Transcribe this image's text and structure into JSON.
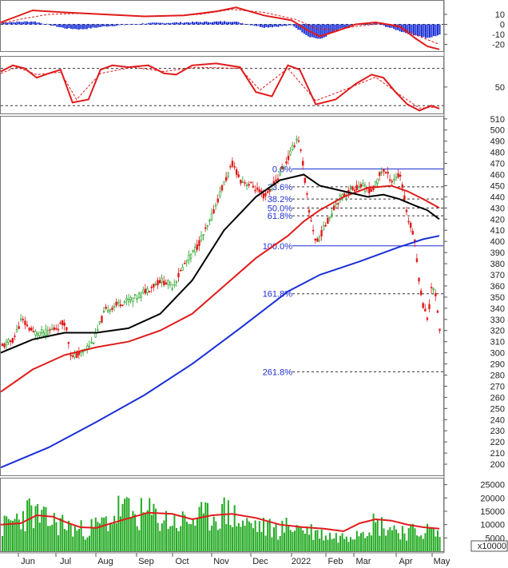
{
  "chart_data": {
    "type": "stock-technical",
    "x_axis_labels": [
      "Jun",
      "Jul",
      "Aug",
      "Sep",
      "Oct",
      "Nov",
      "Dec",
      "2022",
      "Feb",
      "Mar",
      "Apr",
      "May"
    ],
    "colors": {
      "price_up": "#1c9e1c",
      "price_down": "#e01b1b",
      "ma_short": "#000000",
      "ma_mid": "#e01b1b",
      "ma_long": "#1a2fd6",
      "fib": "#1a2fd6",
      "volume": "#22aa22"
    },
    "panels": [
      {
        "name": "macd",
        "ylim": [
          -26,
          22
        ],
        "yticks": [
          10,
          0,
          -10,
          -20
        ],
        "series": [
          {
            "points": [
              [
                0,
                2
              ],
              [
                20,
                8
              ],
              [
                40,
                14
              ],
              [
                80,
                12
              ],
              [
                130,
                10
              ],
              [
                180,
                8
              ],
              [
                230,
                9
              ],
              [
                270,
                13
              ],
              [
                295,
                17
              ],
              [
                330,
                9
              ],
              [
                365,
                4
              ],
              [
                385,
                -6
              ],
              [
                400,
                -12
              ],
              [
                420,
                -7
              ],
              [
                445,
                0
              ],
              [
                470,
                2
              ],
              [
                500,
                -2
              ],
              [
                520,
                -14
              ],
              [
                535,
                -22
              ],
              [
                550,
                -25
              ]
            ]
          },
          {
            "points": [
              [
                0,
                1
              ],
              [
                30,
                6
              ],
              [
                60,
                10
              ],
              [
                100,
                11
              ],
              [
                150,
                9
              ],
              [
                200,
                8
              ],
              [
                250,
                10
              ],
              [
                290,
                15
              ],
              [
                330,
                12
              ],
              [
                370,
                5
              ],
              [
                395,
                -4
              ],
              [
                420,
                -6
              ],
              [
                445,
                -2
              ],
              [
                480,
                1
              ],
              [
                505,
                -4
              ],
              [
                525,
                -12
              ],
              [
                550,
                -20
              ]
            ]
          }
        ],
        "histogram": [
          [
            5,
            2
          ],
          [
            40,
            3
          ],
          [
            80,
            -4
          ],
          [
            100,
            -5
          ],
          [
            130,
            -2
          ],
          [
            180,
            1
          ],
          [
            230,
            2
          ],
          [
            290,
            3
          ],
          [
            330,
            -3
          ],
          [
            365,
            -1
          ],
          [
            385,
            -12
          ],
          [
            400,
            -15
          ],
          [
            420,
            -6
          ],
          [
            440,
            -1
          ],
          [
            470,
            1
          ],
          [
            505,
            -8
          ],
          [
            520,
            -11
          ],
          [
            535,
            -14
          ],
          [
            550,
            -10
          ]
        ]
      },
      {
        "name": "stochastic",
        "ylim": [
          10,
          95
        ],
        "yticks": [
          50
        ],
        "levels": [
          80,
          20
        ],
        "series": [
          {
            "points": [
              [
                0,
                75
              ],
              [
                15,
                85
              ],
              [
                30,
                80
              ],
              [
                45,
                65
              ],
              [
                60,
                72
              ],
              [
                75,
                78
              ],
              [
                90,
                25
              ],
              [
                110,
                30
              ],
              [
                125,
                78
              ],
              [
                140,
                85
              ],
              [
                160,
                82
              ],
              [
                185,
                85
              ],
              [
                205,
                72
              ],
              [
                220,
                70
              ],
              [
                240,
                85
              ],
              [
                270,
                88
              ],
              [
                300,
                82
              ],
              [
                320,
                42
              ],
              [
                340,
                35
              ],
              [
                360,
                85
              ],
              [
                375,
                78
              ],
              [
                395,
                22
              ],
              [
                420,
                30
              ],
              [
                445,
                55
              ],
              [
                465,
                70
              ],
              [
                480,
                65
              ],
              [
                495,
                42
              ],
              [
                510,
                22
              ],
              [
                525,
                12
              ],
              [
                540,
                20
              ],
              [
                550,
                15
              ]
            ]
          },
          {
            "points": [
              [
                0,
                72
              ],
              [
                20,
                82
              ],
              [
                45,
                70
              ],
              [
                75,
                74
              ],
              [
                95,
                30
              ],
              [
                125,
                72
              ],
              [
                165,
                82
              ],
              [
                205,
                75
              ],
              [
                245,
                82
              ],
              [
                300,
                80
              ],
              [
                325,
                45
              ],
              [
                360,
                80
              ],
              [
                395,
                28
              ],
              [
                440,
                50
              ],
              [
                470,
                66
              ],
              [
                500,
                38
              ],
              [
                525,
                16
              ],
              [
                550,
                18
              ]
            ]
          }
        ]
      },
      {
        "name": "price",
        "ylim": [
          190,
          512
        ],
        "yticks": [
          510,
          500,
          490,
          480,
          470,
          460,
          450,
          440,
          430,
          420,
          410,
          400,
          390,
          380,
          370,
          360,
          350,
          340,
          330,
          320,
          310,
          300,
          290,
          280,
          270,
          260,
          250,
          240,
          230,
          220,
          210,
          200
        ],
        "price_path": [
          [
            0,
            305
          ],
          [
            15,
            312
          ],
          [
            25,
            330
          ],
          [
            40,
            318
          ],
          [
            55,
            318
          ],
          [
            70,
            323
          ],
          [
            80,
            328
          ],
          [
            88,
            295
          ],
          [
            100,
            300
          ],
          [
            115,
            310
          ],
          [
            130,
            338
          ],
          [
            150,
            345
          ],
          [
            170,
            350
          ],
          [
            185,
            358
          ],
          [
            200,
            365
          ],
          [
            215,
            360
          ],
          [
            230,
            380
          ],
          [
            245,
            395
          ],
          [
            260,
            415
          ],
          [
            275,
            445
          ],
          [
            290,
            470
          ],
          [
            300,
            455
          ],
          [
            315,
            450
          ],
          [
            330,
            440
          ],
          [
            345,
            455
          ],
          [
            360,
            475
          ],
          [
            372,
            495
          ],
          [
            378,
            470
          ],
          [
            385,
            430
          ],
          [
            395,
            398
          ],
          [
            410,
            420
          ],
          [
            420,
            435
          ],
          [
            435,
            445
          ],
          [
            450,
            450
          ],
          [
            465,
            445
          ],
          [
            478,
            465
          ],
          [
            490,
            455
          ],
          [
            500,
            460
          ],
          [
            510,
            420
          ],
          [
            518,
            405
          ],
          [
            522,
            375
          ],
          [
            528,
            345
          ],
          [
            535,
            330
          ],
          [
            540,
            365
          ],
          [
            546,
            345
          ],
          [
            550,
            318
          ]
        ],
        "ma_short": [
          [
            0,
            300
          ],
          [
            40,
            312
          ],
          [
            80,
            318
          ],
          [
            120,
            318
          ],
          [
            160,
            322
          ],
          [
            200,
            335
          ],
          [
            240,
            365
          ],
          [
            280,
            410
          ],
          [
            320,
            440
          ],
          [
            350,
            455
          ],
          [
            380,
            460
          ],
          [
            400,
            450
          ],
          [
            430,
            445
          ],
          [
            460,
            440
          ],
          [
            480,
            442
          ],
          [
            500,
            438
          ],
          [
            520,
            432
          ],
          [
            535,
            428
          ],
          [
            550,
            420
          ]
        ],
        "ma_mid": [
          [
            0,
            265
          ],
          [
            40,
            285
          ],
          [
            80,
            298
          ],
          [
            120,
            305
          ],
          [
            160,
            310
          ],
          [
            200,
            320
          ],
          [
            240,
            335
          ],
          [
            280,
            360
          ],
          [
            320,
            385
          ],
          [
            360,
            405
          ],
          [
            380,
            418
          ],
          [
            400,
            428
          ],
          [
            430,
            440
          ],
          [
            460,
            448
          ],
          [
            490,
            450
          ],
          [
            510,
            445
          ],
          [
            530,
            438
          ],
          [
            550,
            430
          ]
        ],
        "ma_long": [
          [
            0,
            197
          ],
          [
            60,
            215
          ],
          [
            120,
            238
          ],
          [
            180,
            262
          ],
          [
            240,
            290
          ],
          [
            300,
            322
          ],
          [
            360,
            355
          ],
          [
            400,
            370
          ],
          [
            450,
            382
          ],
          [
            500,
            395
          ],
          [
            530,
            402
          ],
          [
            550,
            405
          ]
        ],
        "fib_levels": [
          {
            "label": "0.0%",
            "value": 465
          },
          {
            "label": "23.6%",
            "value": 449
          },
          {
            "label": "38.2%",
            "value": 438
          },
          {
            "label": "50.0%",
            "value": 430
          },
          {
            "label": "61.8%",
            "value": 423
          },
          {
            "label": "100.0%",
            "value": 396
          },
          {
            "label": "161.8%",
            "value": 353
          },
          {
            "label": "261.8%",
            "value": 283
          }
        ]
      },
      {
        "name": "volume",
        "ylim": [
          0,
          27000
        ],
        "yticks": [
          25000,
          20000,
          15000,
          10000,
          5000
        ],
        "multiplier_label": "x10000",
        "ma": [
          [
            0,
            10000
          ],
          [
            25,
            10500
          ],
          [
            45,
            13500
          ],
          [
            65,
            13000
          ],
          [
            85,
            10500
          ],
          [
            100,
            9000
          ],
          [
            120,
            8800
          ],
          [
            150,
            11500
          ],
          [
            185,
            14500
          ],
          [
            215,
            14000
          ],
          [
            240,
            12000
          ],
          [
            265,
            13500
          ],
          [
            290,
            14000
          ],
          [
            320,
            12500
          ],
          [
            350,
            10000
          ],
          [
            380,
            9000
          ],
          [
            405,
            8500
          ],
          [
            430,
            7500
          ],
          [
            450,
            10500
          ],
          [
            470,
            12000
          ],
          [
            490,
            11500
          ],
          [
            510,
            10000
          ],
          [
            530,
            9000
          ],
          [
            550,
            8500
          ]
        ],
        "volume_envelope": [
          [
            0,
            10000
          ],
          [
            20,
            14000
          ],
          [
            35,
            17000
          ],
          [
            55,
            13000
          ],
          [
            75,
            12000
          ],
          [
            95,
            9000
          ],
          [
            115,
            10000
          ],
          [
            140,
            14000
          ],
          [
            150,
            19000
          ],
          [
            165,
            15000
          ],
          [
            185,
            16000
          ],
          [
            200,
            14000
          ],
          [
            220,
            12000
          ],
          [
            245,
            14000
          ],
          [
            265,
            15000
          ],
          [
            285,
            17000
          ],
          [
            300,
            12000
          ],
          [
            320,
            11000
          ],
          [
            345,
            9000
          ],
          [
            365,
            11000
          ],
          [
            385,
            9000
          ],
          [
            405,
            7000
          ],
          [
            425,
            6000
          ],
          [
            445,
            9000
          ],
          [
            465,
            12000
          ],
          [
            480,
            11000
          ],
          [
            500,
            9000
          ],
          [
            520,
            8000
          ],
          [
            535,
            9000
          ],
          [
            550,
            7000
          ]
        ]
      }
    ]
  }
}
